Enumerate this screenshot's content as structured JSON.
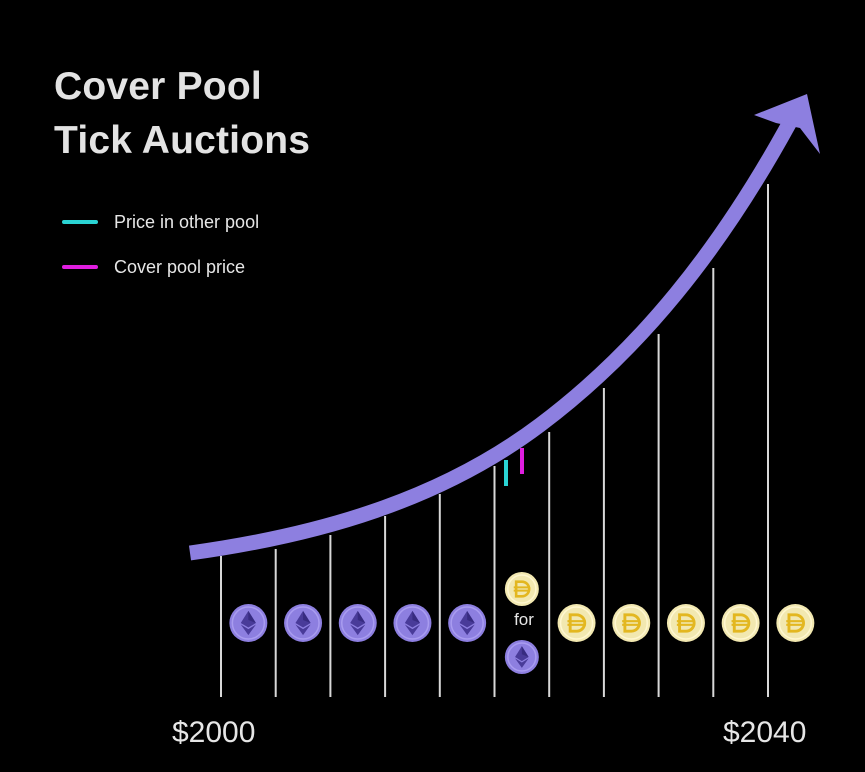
{
  "title": {
    "line1": "Cover Pool",
    "line2": "Tick Auctions"
  },
  "legend": [
    {
      "label": "Price in other pool",
      "color": "#2ad4d4"
    },
    {
      "label": "Cover pool price",
      "color": "#e01ee0"
    }
  ],
  "axis": {
    "min_label": "$2000",
    "max_label": "$2040"
  },
  "ticks": {
    "count": 11
  },
  "tokens": [
    {
      "icon": "eth-coin-icon"
    },
    {
      "icon": "eth-coin-icon"
    },
    {
      "icon": "eth-coin-icon"
    },
    {
      "icon": "eth-coin-icon"
    },
    {
      "icon": "eth-coin-icon"
    },
    {
      "icon": "dai-for-eth-swap",
      "swap_label": "for"
    },
    {
      "icon": "dai-coin-icon"
    },
    {
      "icon": "dai-coin-icon"
    },
    {
      "icon": "dai-coin-icon"
    },
    {
      "icon": "dai-coin-icon"
    },
    {
      "icon": "dai-coin-icon"
    }
  ],
  "colors": {
    "curve": "#8d7fe0",
    "tick_line": "#d8d8d8",
    "eth_coin": "#8d7fe0",
    "dai_coin": "#f2e8b0",
    "dai_symbol": "#e3b720",
    "background": "#000000"
  }
}
